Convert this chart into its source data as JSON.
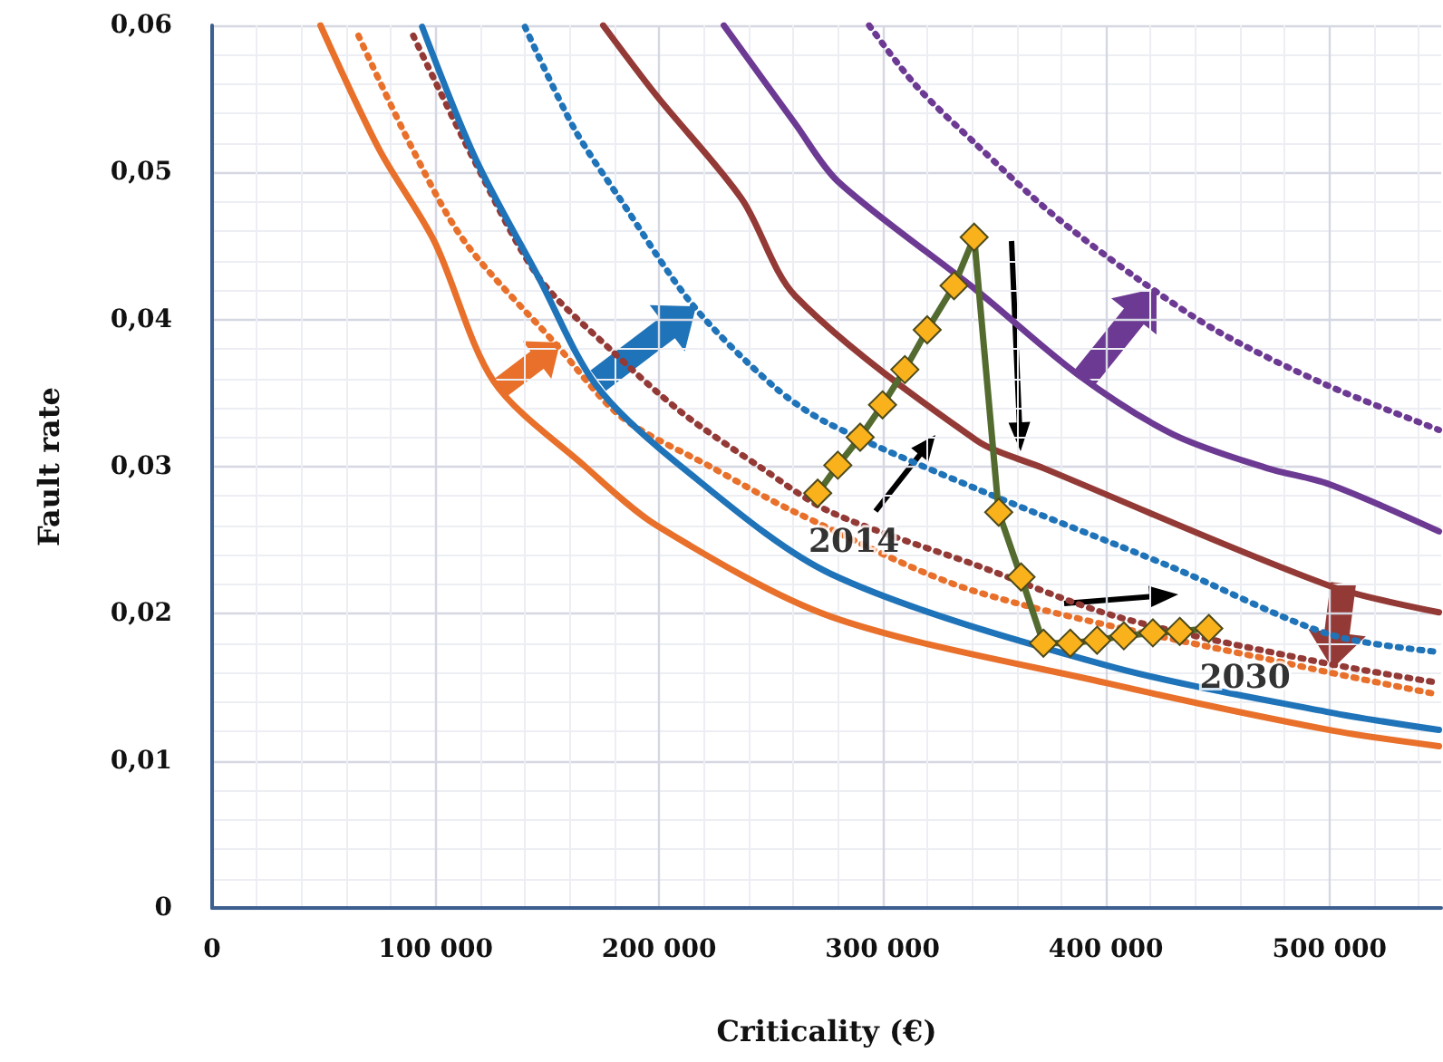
{
  "chart_data": {
    "type": "line",
    "xlabel": "Criticality (€)",
    "ylabel": "Fault rate",
    "xlim": [
      0,
      550000
    ],
    "ylim": [
      0,
      0.06
    ],
    "xticks": [
      0,
      {
        "value": 100000,
        "label": "100 000"
      },
      {
        "value": 200000,
        "label": "200 000"
      },
      {
        "value": 300000,
        "label": "300 000"
      },
      {
        "value": 400000,
        "label": "400 000"
      },
      {
        "value": 500000,
        "label": "500 000"
      }
    ],
    "yticks": [
      0,
      {
        "value": 0.01,
        "label": "0,01"
      },
      {
        "value": 0.02,
        "label": "0,02"
      },
      {
        "value": 0.03,
        "label": "0,03"
      },
      {
        "value": 0.04,
        "label": "0,04"
      },
      {
        "value": 0.05,
        "label": "0,05"
      },
      {
        "value": 0.06,
        "label": "0,06"
      }
    ],
    "grid": true,
    "marker": "none",
    "series": [
      {
        "color": "#e8702a",
        "line_style": "solid",
        "x": [
          48500,
          75000,
          99500,
          126000,
          167000,
          199000,
          277000,
          400000,
          500000,
          549000
        ],
        "values": [
          0.06,
          0.0515,
          0.0453,
          0.0358,
          0.03,
          0.026,
          0.0198,
          0.0153,
          0.0121,
          0.011
        ]
      },
      {
        "color": "#e8702a",
        "line_style": "dotted",
        "x": [
          65500,
          89000,
          113000,
          154000,
          183000,
          223000,
          261000,
          342000,
          488000,
          549000
        ],
        "values": [
          0.0593,
          0.0518,
          0.0453,
          0.0383,
          0.0334,
          0.03,
          0.0269,
          0.0215,
          0.0164,
          0.0145
        ]
      },
      {
        "color": "#943a36",
        "line_style": "dotted",
        "x": [
          90000,
          117000,
          146000,
          178000,
          210000,
          245000,
          277000,
          342000,
          405000,
          493000,
          549000
        ],
        "values": [
          0.0593,
          0.0509,
          0.0429,
          0.038,
          0.0337,
          0.03,
          0.0269,
          0.0233,
          0.0198,
          0.0168,
          0.0153
        ]
      },
      {
        "color": "#1f73b8",
        "line_style": "solid",
        "x": [
          94000,
          118000,
          146000,
          172000,
          210000,
          277000,
          400000,
          500000,
          549000
        ],
        "values": [
          0.0599,
          0.0509,
          0.0429,
          0.0355,
          0.03,
          0.0227,
          0.0165,
          0.0133,
          0.0121
        ]
      },
      {
        "color": "#1f73b8",
        "line_style": "dotted",
        "x": [
          140000,
          162000,
          183000,
          215000,
          251000,
          275000,
          342000,
          429000,
          500000,
          549000
        ],
        "values": [
          0.0599,
          0.053,
          0.0481,
          0.041,
          0.0355,
          0.033,
          0.0285,
          0.0232,
          0.0186,
          0.0174
        ]
      },
      {
        "color": "#943a36",
        "line_style": "solid",
        "x": [
          175000,
          199000,
          237000,
          261000,
          342000,
          372000,
          500000,
          549000
        ],
        "values": [
          0.06,
          0.0552,
          0.0482,
          0.0416,
          0.0318,
          0.0299,
          0.0219,
          0.0201
        ]
      },
      {
        "color": "#6d3a93",
        "line_style": "solid",
        "x": [
          229000,
          261000,
          280000,
          342000,
          388000,
          430000,
          472000,
          500000,
          549000
        ],
        "values": [
          0.06,
          0.0533,
          0.0494,
          0.042,
          0.0362,
          0.0322,
          0.0299,
          0.0288,
          0.0256
        ]
      },
      {
        "color": "#6d3a93",
        "line_style": "dotted",
        "x": [
          294000,
          315000,
          342000,
          375000,
          413000,
          450000,
          498000,
          549000
        ],
        "values": [
          0.06,
          0.0559,
          0.0519,
          0.0473,
          0.0429,
          0.0392,
          0.0356,
          0.0325
        ]
      },
      {
        "color": "#536b2f",
        "line_style": "solid",
        "marker": "diamond",
        "colors": [
          "#f9b21b",
          "#f9b21b",
          "#f9b21b",
          "#f9b21b",
          "#f9b21b",
          "#f9b21b",
          "#f9b21b",
          "#f9b21b",
          "#f9b21b",
          "#f9b21b",
          "#f9b21b",
          "#f9b21b",
          "#f9b21b",
          "#f9b21b",
          "#f9b21b",
          "#f9b21b",
          "#f9b21b"
        ],
        "x": [
          271000,
          280000,
          290000,
          300000,
          310000,
          320000,
          332000,
          341000,
          352000,
          362000,
          372000,
          384000,
          396000,
          408000,
          421000,
          433000,
          446000
        ],
        "values": [
          0.0282,
          0.0301,
          0.032,
          0.0342,
          0.0366,
          0.0393,
          0.0423,
          0.0456,
          0.0269,
          0.0225,
          0.018,
          0.018,
          0.0182,
          0.0185,
          0.0187,
          0.0188,
          0.019
        ]
      }
    ],
    "annotations": [
      {
        "text": "2014",
        "x": 271000,
        "y": 0.0282
      },
      {
        "text": "2030",
        "x": 446000,
        "y": 0.019
      }
    ]
  }
}
